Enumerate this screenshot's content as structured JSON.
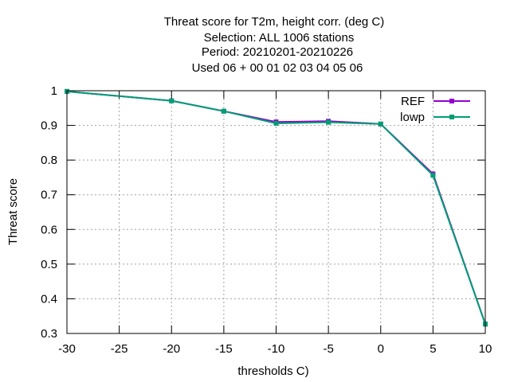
{
  "chart_data": {
    "type": "line",
    "title": [
      "Threat score  for T2m, height corr. (deg C)",
      "Selection: ALL   1006 stations",
      "Period: 20210201-20210226",
      "Used  06  + 00 01 02 03 04 05 06"
    ],
    "xlabel": "thresholds C)",
    "ylabel": "Threat score",
    "xlim": [
      -30,
      10
    ],
    "ylim": [
      0.3,
      1
    ],
    "xticks": [
      -30,
      -25,
      -20,
      -15,
      -10,
      -5,
      0,
      5,
      10
    ],
    "yticks": [
      0.3,
      0.4,
      0.5,
      0.6,
      0.7,
      0.8,
      0.9,
      1
    ],
    "grid": true,
    "legend_position": "top-right",
    "x": [
      -30,
      -20,
      -15,
      -10,
      -5,
      0,
      5,
      10
    ],
    "series": [
      {
        "name": "REF",
        "color": "#9400d3",
        "values": [
          0.998,
          0.971,
          0.941,
          0.91,
          0.912,
          0.904,
          0.76,
          0.327
        ]
      },
      {
        "name": "lowp",
        "color": "#009e73",
        "values": [
          0.998,
          0.971,
          0.941,
          0.906,
          0.909,
          0.904,
          0.756,
          0.327
        ]
      }
    ]
  }
}
